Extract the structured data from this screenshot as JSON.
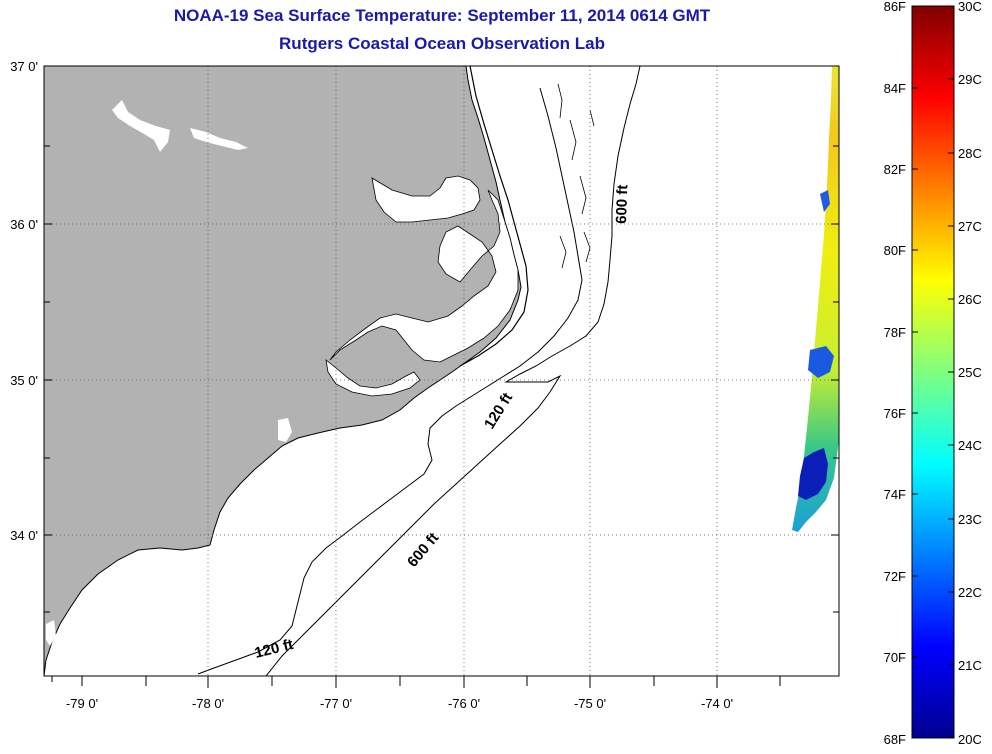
{
  "header": {
    "title": "NOAA-19 Sea Surface Temperature:  September 11, 2014 0614 GMT",
    "subtitle": "Rutgers Coastal Ocean Observation Lab"
  },
  "map": {
    "region": "North Carolina coast",
    "lat_range": [
      33.1,
      37.0
    ],
    "lon_range": [
      -79.3,
      -73.05
    ],
    "lat_ticks": [
      "37 0'",
      "36 0'",
      "35 0'",
      "34 0'"
    ],
    "lon_ticks": [
      "-79 0'",
      "-78 0'",
      "-77 0'",
      "-76 0'",
      "-75 0'",
      "-74 0'"
    ],
    "land_color": "#b2b2b2",
    "grid": true
  },
  "contours": {
    "labels": [
      {
        "text": "600 ft"
      },
      {
        "text": "120 ft"
      },
      {
        "text": "600 ft"
      },
      {
        "text": "120 ft"
      }
    ]
  },
  "colorbar": {
    "fahrenheit": [
      "86F",
      "84F",
      "82F",
      "80F",
      "78F",
      "76F",
      "74F",
      "72F",
      "70F",
      "68F"
    ],
    "celsius": [
      "30C",
      "29C",
      "28C",
      "27C",
      "26C",
      "25C",
      "24C",
      "23C",
      "22C",
      "21C",
      "20C"
    ],
    "range_c": [
      20,
      30
    ],
    "colormap": "jet"
  }
}
